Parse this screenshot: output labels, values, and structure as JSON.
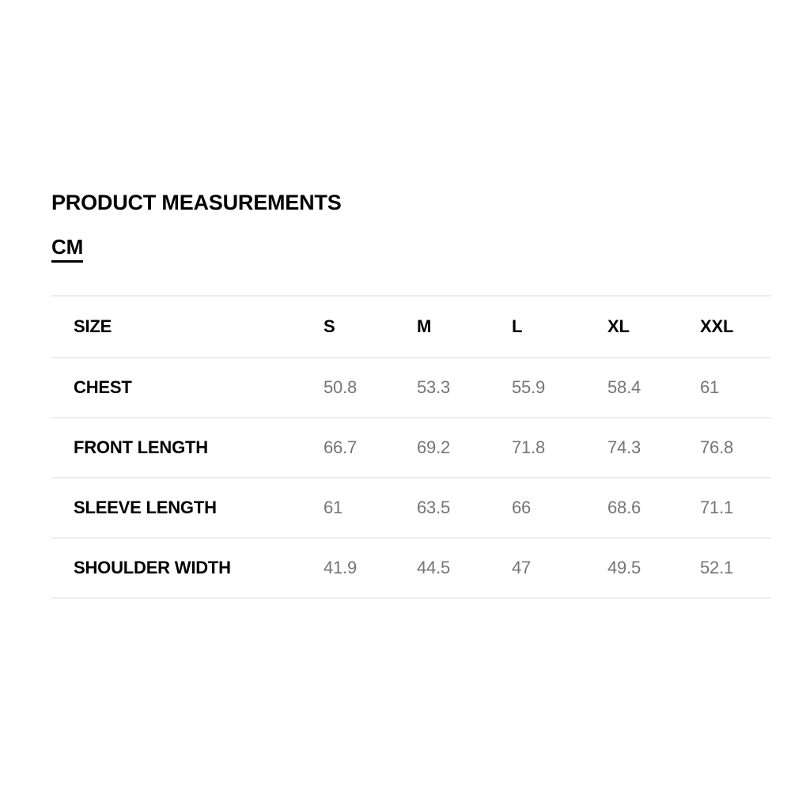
{
  "page": {
    "title": "PRODUCT MEASUREMENTS",
    "unit": "CM"
  },
  "table": {
    "size_column_header": "SIZE",
    "size_headers": [
      "S",
      "M",
      "L",
      "XL",
      "XXL"
    ],
    "rows": [
      {
        "label": "CHEST",
        "values": [
          "50.8",
          "53.3",
          "55.9",
          "58.4",
          "61"
        ]
      },
      {
        "label": "FRONT LENGTH",
        "values": [
          "66.7",
          "69.2",
          "71.8",
          "74.3",
          "76.8"
        ]
      },
      {
        "label": "SLEEVE LENGTH",
        "values": [
          "61",
          "63.5",
          "66",
          "68.6",
          "71.1"
        ]
      },
      {
        "label": "SHOULDER WIDTH",
        "values": [
          "41.9",
          "44.5",
          "47",
          "49.5",
          "52.1"
        ]
      }
    ]
  },
  "colors": {
    "label_text": "#000000",
    "value_text": "#757575",
    "divider": "#ededed",
    "background": "#ffffff"
  }
}
